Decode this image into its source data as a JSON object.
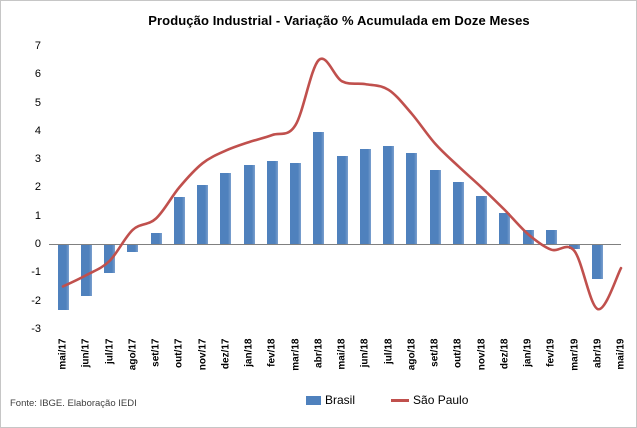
{
  "title": "Produção Industrial - Variação % Acumulada em Doze Meses",
  "footer": {
    "source": "Fonte: IBGE. Elaboração IEDI"
  },
  "legend": {
    "items": [
      "Brasil",
      "São Paulo"
    ]
  },
  "colors": {
    "bar": "#4F81BD",
    "bar_edge": "#7BA0CF",
    "line": "#C0504D",
    "axis": "#808080",
    "text": "#000000",
    "footer_text": "#404040"
  },
  "chart_data": {
    "type": "bar",
    "title": "Produção Industrial - Variação % Acumulada em Doze Meses",
    "categories": [
      "mai/17",
      "jun/17",
      "jul/17",
      "ago/17",
      "set/17",
      "out/17",
      "nov/17",
      "dez/17",
      "jan/18",
      "fev/18",
      "mar/18",
      "abr/18",
      "mai/18",
      "jun/18",
      "jul/18",
      "ago/18",
      "set/18",
      "out/18",
      "nov/18",
      "dez/18",
      "jan/19",
      "fev/19",
      "mar/19",
      "abr/19",
      "mai/19"
    ],
    "series": [
      {
        "name": "Brasil",
        "type": "bar",
        "color": "#4F81BD",
        "values": [
          -2.3,
          -1.8,
          -1.0,
          -0.25,
          0.4,
          1.65,
          2.1,
          2.5,
          2.8,
          2.95,
          2.85,
          3.95,
          3.1,
          3.35,
          3.45,
          3.2,
          2.6,
          2.2,
          1.7,
          1.1,
          0.5,
          0.5,
          -0.15,
          -1.2,
          0.0
        ]
      },
      {
        "name": "São Paulo",
        "type": "line",
        "color": "#C0504D",
        "values": [
          -1.5,
          -1.1,
          -0.6,
          0.5,
          0.9,
          2.0,
          2.85,
          3.3,
          3.6,
          3.85,
          4.2,
          6.5,
          5.75,
          5.65,
          5.45,
          4.6,
          3.55,
          2.75,
          2.0,
          1.2,
          0.35,
          -0.2,
          -0.25,
          -2.3,
          -0.85
        ]
      }
    ],
    "xlabel": "",
    "ylabel": "",
    "ylim": [
      -3,
      7
    ],
    "yticks": [
      7,
      6,
      5,
      4,
      3,
      2,
      1,
      0,
      -1,
      -2,
      -3
    ],
    "grid": false,
    "legend_position": "bottom"
  }
}
